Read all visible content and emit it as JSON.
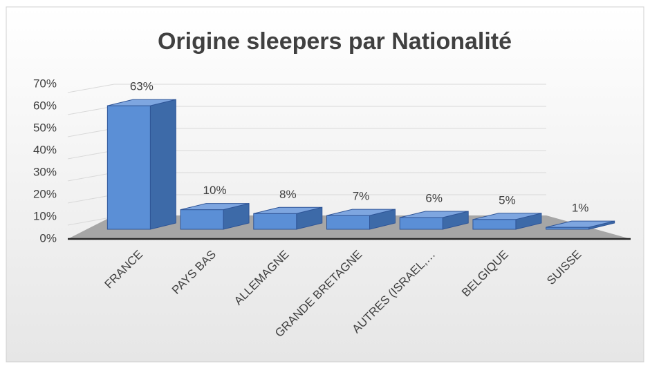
{
  "chart_data": {
    "type": "bar3d",
    "title": "Origine sleepers par Nationalité",
    "categories": [
      "FRANCE",
      "PAYS BAS",
      "ALLEMAGNE",
      "GRANDE BRETAGNE",
      "AUTRES (ISRAEL,…",
      "BELGIQUE",
      "SUISSE"
    ],
    "values": [
      63,
      10,
      8,
      7,
      6,
      5,
      1
    ],
    "value_labels": [
      "63%",
      "10%",
      "8%",
      "7%",
      "6%",
      "5%",
      "1%"
    ],
    "color": "#5b8fd6",
    "ylim": [
      0,
      70
    ],
    "yticks": [
      {
        "value": 0,
        "label": "0%"
      },
      {
        "value": 10,
        "label": "10%"
      },
      {
        "value": 20,
        "label": "20%"
      },
      {
        "value": 30,
        "label": "30%"
      },
      {
        "value": 40,
        "label": "40%"
      },
      {
        "value": 50,
        "label": "50%"
      },
      {
        "value": 60,
        "label": "60%"
      },
      {
        "value": 70,
        "label": "70%"
      }
    ],
    "grid": true
  }
}
